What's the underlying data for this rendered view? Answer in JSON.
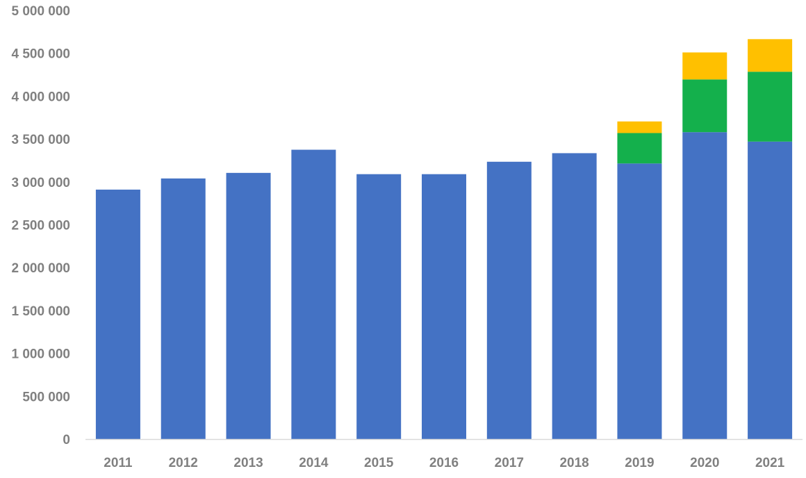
{
  "chart_data": {
    "type": "bar",
    "stacked": true,
    "title": "",
    "xlabel": "",
    "ylabel": "",
    "categories": [
      "2011",
      "2012",
      "2013",
      "2014",
      "2015",
      "2016",
      "2017",
      "2018",
      "2019",
      "2020",
      "2021"
    ],
    "series": [
      {
        "color": "#4472C4",
        "values": [
          2910000,
          3040000,
          3105000,
          3375000,
          3090000,
          3090000,
          3235000,
          3335000,
          3215000,
          3580000,
          3470000
        ]
      },
      {
        "color": "#14B04C",
        "values": [
          0,
          0,
          0,
          0,
          0,
          0,
          0,
          0,
          355000,
          615000,
          815000
        ]
      },
      {
        "color": "#FFC000",
        "values": [
          0,
          0,
          0,
          0,
          0,
          0,
          0,
          0,
          135000,
          315000,
          380000
        ]
      }
    ],
    "ylim": [
      0,
      5000000
    ],
    "yticks": [
      0,
      500000,
      1000000,
      1500000,
      2000000,
      2500000,
      3000000,
      3500000,
      4000000,
      4500000,
      5000000
    ],
    "ytick_labels": [
      "0",
      "500 000",
      "1 000 000",
      "1 500 000",
      "2 000 000",
      "2 500 000",
      "3 000 000",
      "3 500 000",
      "4 000 000",
      "4 500 000",
      "5 000 000"
    ],
    "grid": false,
    "legend": "none",
    "axis_color": "#D9D9D9",
    "label_color": "#808080"
  }
}
